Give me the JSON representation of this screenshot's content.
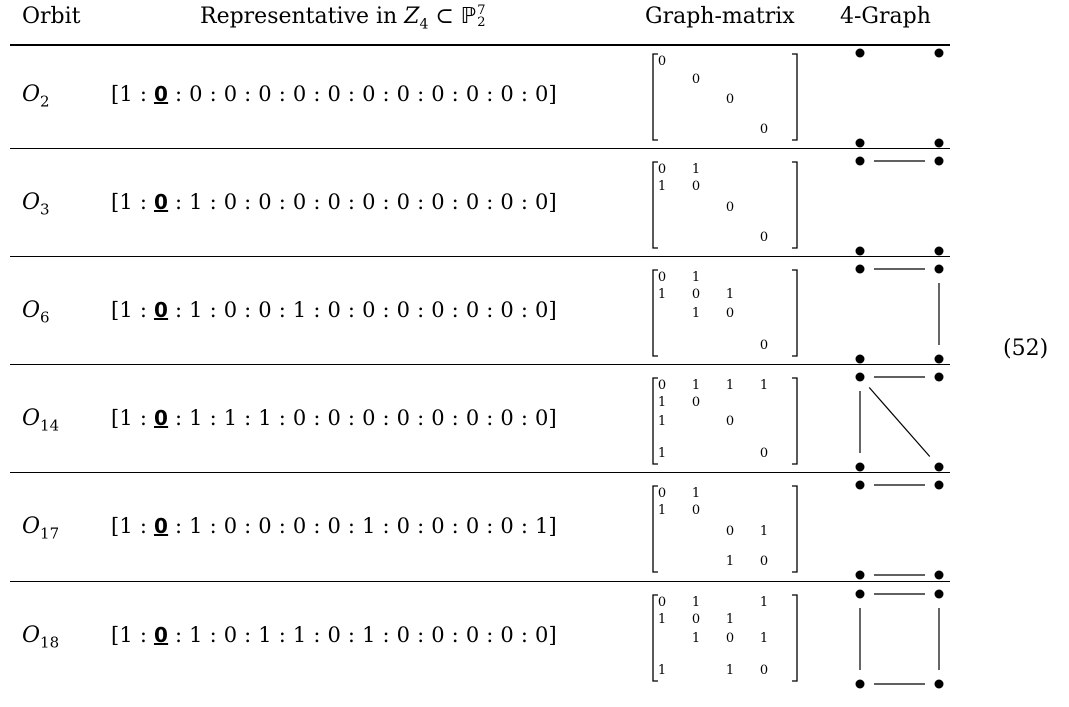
{
  "header": {
    "orbit": "Orbit",
    "representative_prefix": "Representative in ",
    "calZ": "Z",
    "calZ_sub": "4",
    "subset": " ⊂ ",
    "bbP": "ℙ",
    "bbP_sub": "2",
    "bbP_sup": "7",
    "graph_matrix": "Graph-matrix",
    "four_graph": "4-Graph"
  },
  "equation_number": "(52)",
  "rows": [
    {
      "orbit_letter": "O",
      "orbit_sub": "2",
      "rep_open": "[1 : ",
      "rep_zero": "0",
      "rep_rest": " : 0 : 0 : 0 : 0 : 0 : 0 : 0 : 0 : 0 : 0 : 0]",
      "matrix": [
        [
          "0",
          "",
          "",
          ""
        ],
        [
          "",
          "0",
          "",
          ""
        ],
        [
          "",
          "",
          "0",
          ""
        ],
        [
          "",
          "",
          "",
          "0"
        ]
      ],
      "edges": []
    },
    {
      "orbit_letter": "O",
      "orbit_sub": "3",
      "rep_open": "[1 : ",
      "rep_zero": "0",
      "rep_rest": " : 1 : 0 : 0 : 0 : 0 : 0 : 0 : 0 : 0 : 0 : 0]",
      "matrix": [
        [
          "0",
          "1",
          "",
          ""
        ],
        [
          "1",
          "0",
          "",
          ""
        ],
        [
          "",
          "",
          "0",
          ""
        ],
        [
          "",
          "",
          "",
          "0"
        ]
      ],
      "edges": [
        [
          "tl",
          "tr"
        ]
      ]
    },
    {
      "orbit_letter": "O",
      "orbit_sub": "6",
      "rep_open": "[1 : ",
      "rep_zero": "0",
      "rep_rest": " : 1 : 0 : 0 : 1 : 0 : 0 : 0 : 0 : 0 : 0 : 0]",
      "matrix": [
        [
          "0",
          "1",
          "",
          ""
        ],
        [
          "1",
          "0",
          "1",
          ""
        ],
        [
          "",
          "1",
          "0",
          ""
        ],
        [
          "",
          "",
          "",
          "0"
        ]
      ],
      "edges": [
        [
          "tl",
          "tr"
        ],
        [
          "tr",
          "br"
        ]
      ]
    },
    {
      "orbit_letter": "O",
      "orbit_sub": "14",
      "rep_open": "[1 : ",
      "rep_zero": "0",
      "rep_rest": " : 1 : 1 : 1 : 0 : 0 : 0 : 0 : 0 : 0 : 0 : 0]",
      "matrix": [
        [
          "0",
          "1",
          "1",
          "1"
        ],
        [
          "1",
          "0",
          "",
          ""
        ],
        [
          "1",
          "",
          "0",
          ""
        ],
        [
          "1",
          "",
          "",
          "0"
        ]
      ],
      "edges": [
        [
          "tl",
          "tr"
        ],
        [
          "tl",
          "bl"
        ],
        [
          "tl",
          "br"
        ]
      ]
    },
    {
      "orbit_letter": "O",
      "orbit_sub": "17",
      "rep_open": "[1 : ",
      "rep_zero": "0",
      "rep_rest": " : 1 : 0 : 0 : 0 : 0 : 1 : 0 : 0 : 0 : 0 : 1]",
      "matrix": [
        [
          "0",
          "1",
          "",
          ""
        ],
        [
          "1",
          "0",
          "",
          ""
        ],
        [
          "",
          "",
          "0",
          "1"
        ],
        [
          "",
          "",
          "1",
          "0"
        ]
      ],
      "edges": [
        [
          "tl",
          "tr"
        ],
        [
          "bl",
          "br"
        ]
      ]
    },
    {
      "orbit_letter": "O",
      "orbit_sub": "18",
      "rep_open": "[1 : ",
      "rep_zero": "0",
      "rep_rest": " : 1 : 0 : 1 : 1 : 0 : 1 : 0 : 0 : 0 : 0 : 0]",
      "matrix": [
        [
          "0",
          "1",
          "",
          "1"
        ],
        [
          "1",
          "0",
          "1",
          ""
        ],
        [
          "",
          "1",
          "0",
          "1"
        ],
        [
          "1",
          "",
          "1",
          "0"
        ]
      ],
      "edges": [
        [
          "tl",
          "tr"
        ],
        [
          "tr",
          "br"
        ],
        [
          "br",
          "bl"
        ],
        [
          "bl",
          "tl"
        ]
      ]
    }
  ]
}
